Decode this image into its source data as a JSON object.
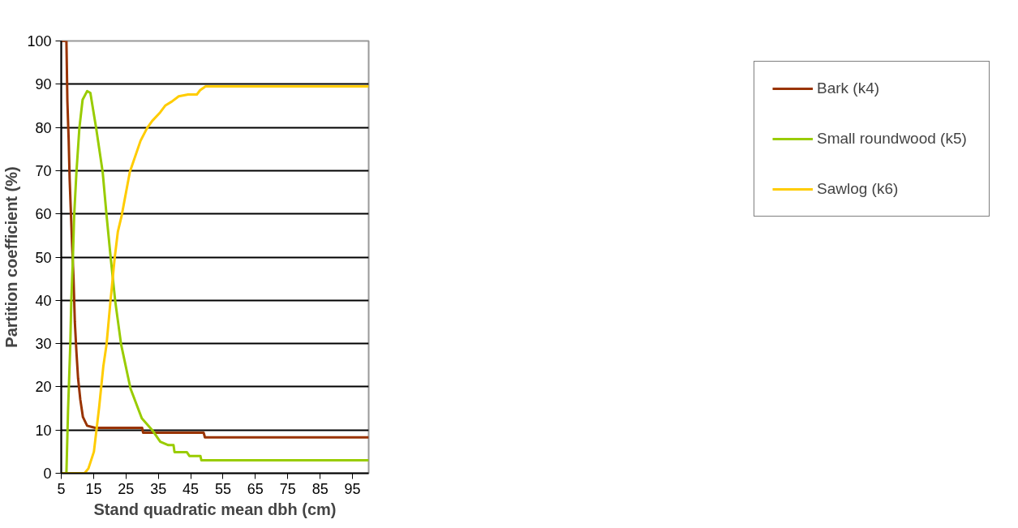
{
  "chart_data": {
    "type": "line",
    "xlabel": "Stand quadratic mean dbh (cm)",
    "ylabel": "Partition coefficient (%)",
    "xlim": [
      5,
      100
    ],
    "xticks": [
      5,
      15,
      25,
      35,
      45,
      55,
      65,
      75,
      85,
      95
    ],
    "ylim": [
      0,
      100
    ],
    "yticks": [
      0,
      10,
      20,
      30,
      40,
      50,
      60,
      70,
      80,
      90,
      100
    ],
    "grid": "y",
    "legend": "right",
    "marker": "none",
    "line_style": "solid",
    "series": [
      {
        "name": "Bark (k4)",
        "color": "#993300",
        "x": [
          5,
          6.6,
          6.9,
          7.3,
          7.6,
          8.0,
          8.4,
          8.8,
          9.2,
          9.7,
          10.2,
          10.9,
          11.7,
          13.0,
          14.5,
          15.5,
          20,
          30,
          30.3,
          40,
          49,
          49.4,
          100
        ],
        "values": [
          100,
          100,
          86,
          77,
          68,
          60,
          52,
          45,
          35,
          28,
          22,
          17,
          13,
          11,
          10.7,
          10.5,
          10.5,
          10.5,
          9.4,
          9.4,
          9.4,
          8.3,
          8.3
        ]
      },
      {
        "name": "Small roundwood (k5)",
        "color": "#99cc00",
        "x": [
          6.6,
          7.1,
          7.8,
          8.1,
          8.6,
          9.0,
          9.7,
          10.6,
          11.6,
          13.0,
          14.0,
          15.8,
          17.8,
          19.0,
          20.3,
          21.7,
          23.5,
          26.4,
          29.9,
          33.1,
          35.6,
          38.1,
          39.7,
          40.0,
          43.8,
          44.6,
          48.0,
          48.3,
          100
        ],
        "values": [
          0,
          14.5,
          29.8,
          39.7,
          49.7,
          59.7,
          69.7,
          79.8,
          86.4,
          88.4,
          88,
          79.8,
          69.7,
          59.7,
          49.7,
          39.7,
          29.8,
          19.6,
          12.7,
          10,
          7.3,
          6.5,
          6.5,
          4.9,
          4.9,
          4,
          4,
          3,
          3
        ]
      },
      {
        "name": "Sawlog (k6)",
        "color": "#ffcc00",
        "x": [
          5,
          12.2,
          13.4,
          15.1,
          16.7,
          18.0,
          19.0,
          20.2,
          21.5,
          22.5,
          23.7,
          26.2,
          29.5,
          31.5,
          33.1,
          35.6,
          37.2,
          39.2,
          41.3,
          44.2,
          46.9,
          47.9,
          49.6,
          100
        ],
        "values": [
          0,
          0,
          1.1,
          5,
          15.2,
          24.7,
          29.8,
          39.7,
          49.7,
          55.9,
          59.7,
          69.7,
          76.9,
          79.8,
          81.5,
          83.5,
          85.1,
          86,
          87.2,
          87.6,
          87.6,
          88.6,
          89.5,
          89.5
        ]
      }
    ]
  }
}
